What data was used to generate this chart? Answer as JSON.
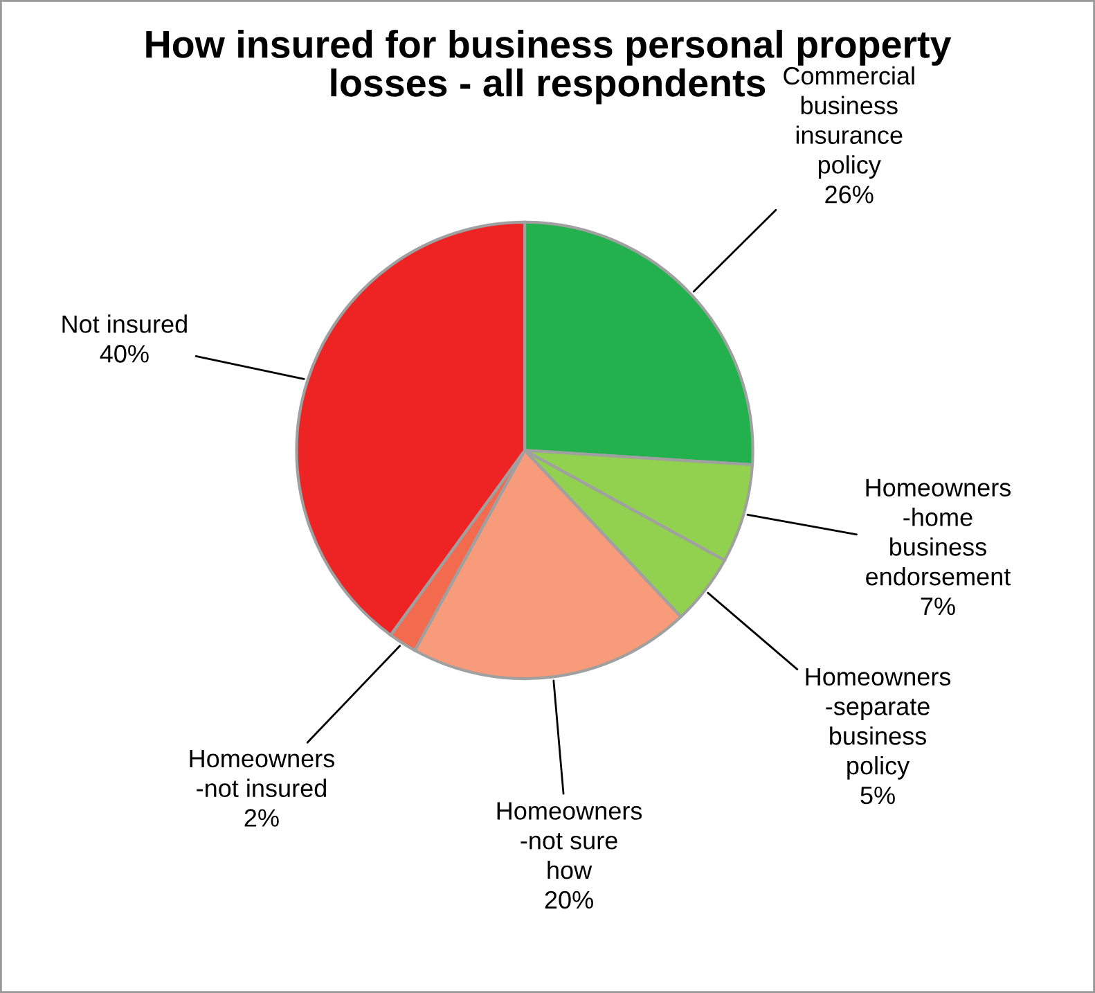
{
  "chart_data": {
    "type": "pie",
    "title": "How insured for business personal property\nlosses - all respondents",
    "categories": [
      "Commercial\nbusiness\ninsurance\npolicy",
      "Homeowners\n-home\nbusiness\nendorsement",
      "Homeowners\n-separate\nbusiness\npolicy",
      "Homeowners\n-not sure\nhow",
      "Homeowners\n-not insured",
      "Not insured"
    ],
    "values": [
      26,
      7,
      5,
      20,
      2,
      40
    ],
    "value_labels": [
      "26%",
      "7%",
      "5%",
      "20%",
      "2%",
      "40%"
    ],
    "colors": [
      "#22b14c",
      "#92d050",
      "#92d050",
      "#f79b7b",
      "#f26b4f",
      "#ee2424"
    ]
  }
}
